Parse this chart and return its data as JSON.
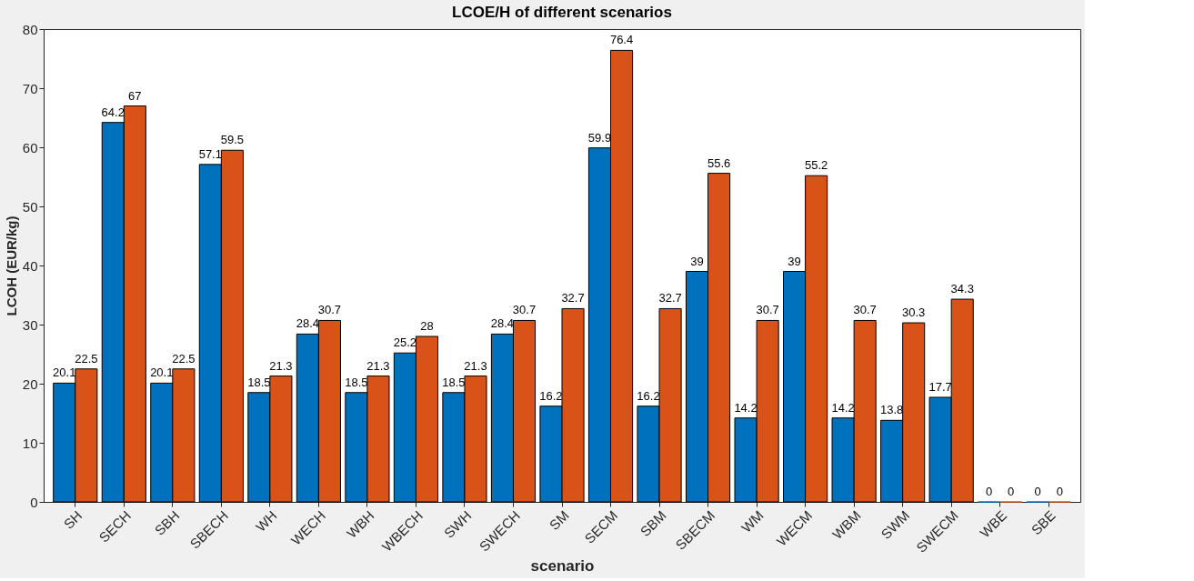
{
  "chart_data": {
    "type": "bar",
    "title": "LCOE/H of different scenarios",
    "xlabel": "scenario",
    "ylabel": "LCOH (EUR/kg)",
    "categories": [
      "SH",
      "SECH",
      "SBH",
      "SBECH",
      "WH",
      "WECH",
      "WBH",
      "WBECH",
      "SWH",
      "SWECH",
      "SM",
      "SECM",
      "SBM",
      "SBECM",
      "WM",
      "WECM",
      "WBM",
      "SWM",
      "SWECM",
      "WBE",
      "SBE"
    ],
    "series": [
      {
        "color": "#0072bd",
        "values": [
          20.1,
          64.2,
          20.1,
          57.1,
          18.5,
          28.4,
          18.5,
          25.2,
          18.5,
          28.4,
          16.2,
          59.9,
          16.2,
          39,
          14.2,
          39,
          14.2,
          13.8,
          17.7,
          0,
          0
        ]
      },
      {
        "color": "#d95319",
        "values": [
          22.5,
          67,
          22.5,
          59.5,
          21.3,
          30.7,
          21.3,
          28,
          21.3,
          30.7,
          32.7,
          76.4,
          32.7,
          55.6,
          30.7,
          55.2,
          30.7,
          30.3,
          34.3,
          0,
          0
        ]
      }
    ],
    "ylim": [
      0,
      80
    ],
    "yticks": [
      0,
      10,
      20,
      30,
      40,
      50,
      60,
      70,
      80
    ],
    "grid": false,
    "legend": false,
    "data_labels": true
  }
}
